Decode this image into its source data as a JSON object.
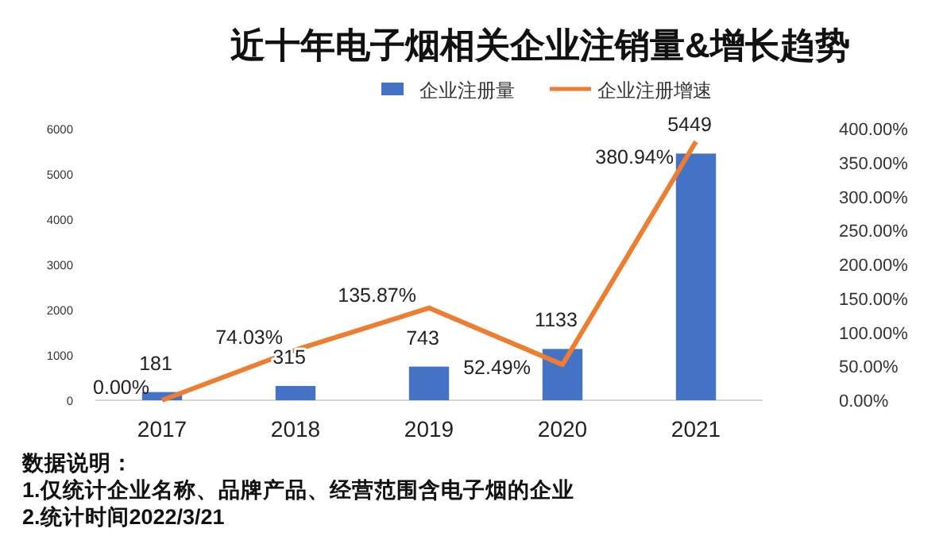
{
  "chart_data": {
    "type": "bar",
    "title": "近十年电子烟相关企业注销量&增长趋势",
    "categories": [
      "2017",
      "2018",
      "2019",
      "2020",
      "2021"
    ],
    "series": [
      {
        "name": "企业注册量",
        "color": "#4472c4",
        "values": [
          181,
          315,
          743,
          1133,
          5449
        ],
        "value_labels": [
          "181",
          "315",
          "743",
          "1133",
          "5449"
        ]
      },
      {
        "name": "企业注册增速",
        "type": "line",
        "axis": "y2",
        "color": "#ed7d31",
        "values": [
          0,
          74.03,
          135.87,
          52.49,
          380.94
        ],
        "value_labels": [
          "0.00%",
          "74.03%",
          "135.87%",
          "52.49%",
          "380.94%"
        ]
      }
    ],
    "ylim": [
      0,
      6000
    ],
    "yticks": [
      0,
      1000,
      2000,
      3000,
      4000,
      5000,
      6000
    ],
    "y2lim": [
      0,
      400
    ],
    "y2ticks": [
      {
        "value": 0,
        "label": "0.00%"
      },
      {
        "value": 50,
        "label": "50.00%"
      },
      {
        "value": 100,
        "label": "100.00%"
      },
      {
        "value": 150,
        "label": "150.00%"
      },
      {
        "value": 200,
        "label": "200.00%"
      },
      {
        "value": 250,
        "label": "250.00%"
      },
      {
        "value": 300,
        "label": "300.00%"
      },
      {
        "value": 350,
        "label": "350.00%"
      },
      {
        "value": 400,
        "label": "400.00%"
      }
    ],
    "legend": "top",
    "grid": false,
    "annotations": [
      "数据说明：",
      "1.仅统计企业名称、品牌产品、经营范围含电子烟的企业",
      "2.统计时间2022/3/21"
    ]
  }
}
